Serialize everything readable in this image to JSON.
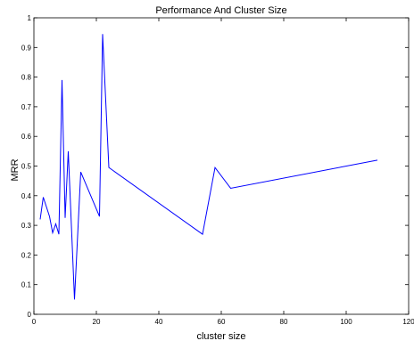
{
  "chart_data": {
    "type": "line",
    "title": "Performance And Cluster Size",
    "xlabel": "cluster size",
    "ylabel": "MRR",
    "xlim": [
      0,
      120
    ],
    "ylim": [
      0,
      1
    ],
    "x_ticks": [
      0,
      20,
      40,
      60,
      80,
      100,
      120
    ],
    "y_ticks": [
      0,
      0.1,
      0.2,
      0.3,
      0.4,
      0.5,
      0.6,
      0.7,
      0.8,
      0.9,
      1
    ],
    "x_tick_labels": [
      "0",
      "20",
      "40",
      "60",
      "80",
      "100",
      "120"
    ],
    "y_tick_labels": [
      "0",
      "0.1",
      "0.2",
      "0.3",
      "0.4",
      "0.5",
      "0.6",
      "0.7",
      "0.8",
      "0.9",
      "1"
    ],
    "grid": false,
    "legend": "none",
    "line_color": "#0000ff",
    "series": [
      {
        "x": [
          2,
          3,
          5,
          6,
          7,
          8,
          9,
          10,
          11,
          13,
          15,
          21,
          22,
          24,
          54,
          58,
          63,
          110
        ],
        "y": [
          0.32,
          0.395,
          0.33,
          0.275,
          0.305,
          0.27,
          0.79,
          0.325,
          0.55,
          0.05,
          0.48,
          0.33,
          0.945,
          0.495,
          0.27,
          0.495,
          0.425,
          0.52
        ]
      }
    ]
  }
}
